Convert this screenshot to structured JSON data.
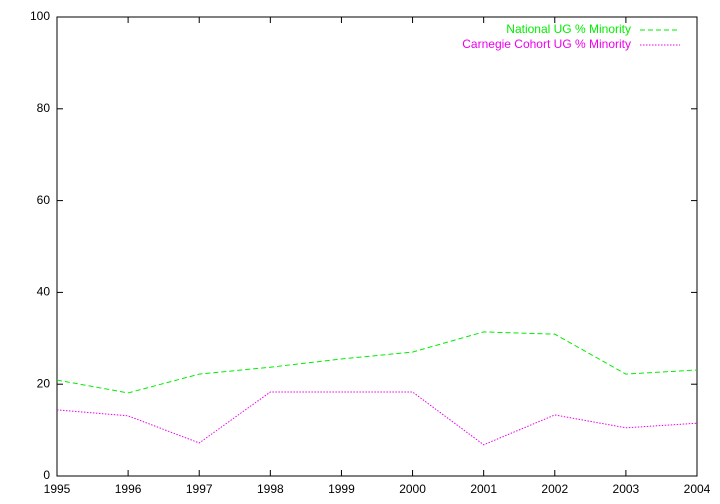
{
  "chart_data": {
    "type": "line",
    "x": [
      1995,
      1996,
      1997,
      1998,
      1999,
      2000,
      2001,
      2002,
      2003,
      2004
    ],
    "series": [
      {
        "name": "National UG % Minority",
        "color": "#00ee00",
        "linestyle": "dashed",
        "values": [
          20.9,
          18.1,
          22.2,
          23.7,
          25.5,
          27.0,
          31.4,
          30.9,
          22.2,
          23.1
        ]
      },
      {
        "name": "Carnegie Cohort UG % Minority",
        "color": "#ee00ee",
        "linestyle": "dotted",
        "values": [
          14.4,
          13.1,
          7.2,
          18.3,
          18.3,
          18.3,
          6.8,
          13.3,
          10.5,
          11.5
        ]
      }
    ],
    "xlim": [
      1995,
      2004
    ],
    "xticks": [
      1995,
      1996,
      1997,
      1998,
      1999,
      2000,
      2001,
      2002,
      2003,
      2004
    ],
    "ylim": [
      0,
      100
    ],
    "yticks": [
      0,
      20,
      40,
      60,
      80,
      100
    ],
    "grid": false,
    "legend": "top-right"
  }
}
